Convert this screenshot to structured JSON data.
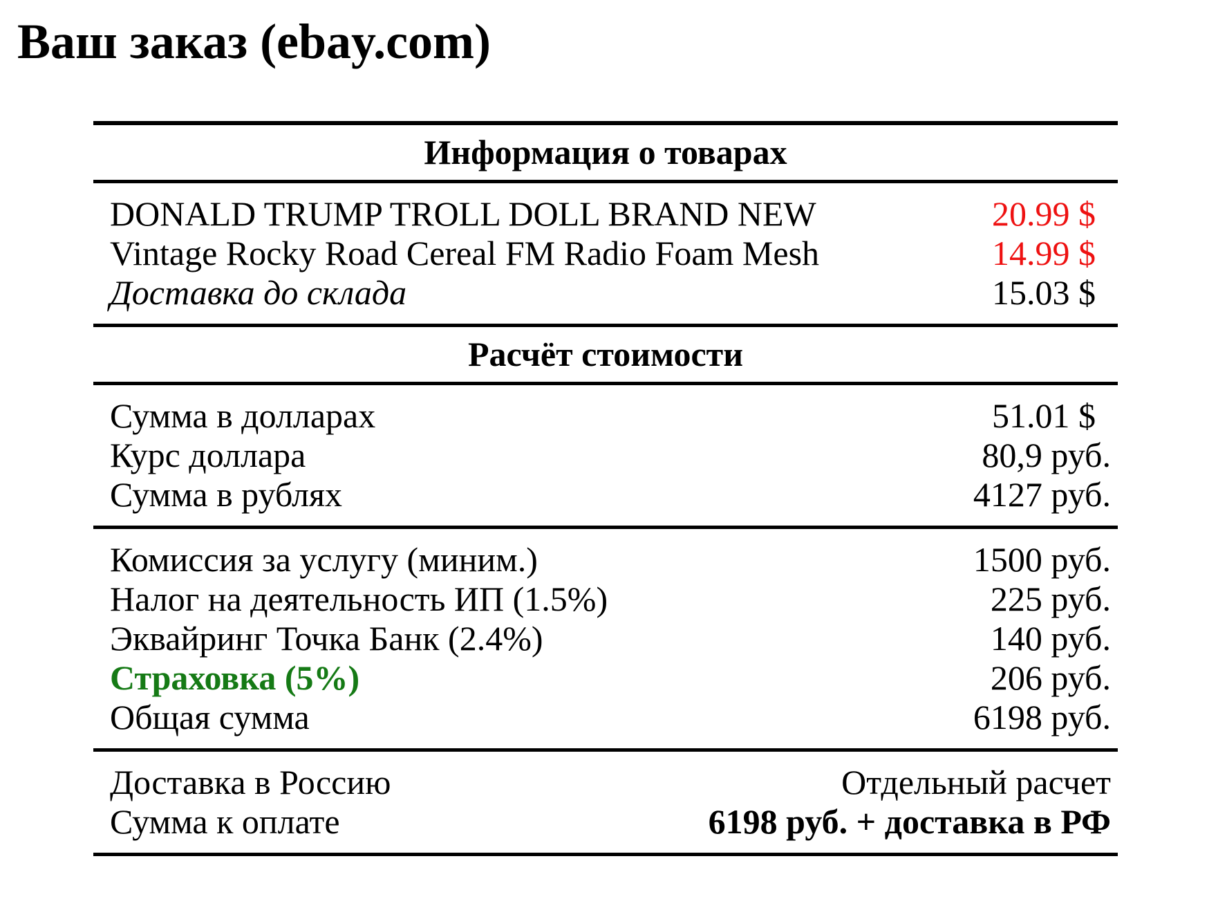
{
  "page": {
    "title": "Ваш заказ (ebay.com)"
  },
  "colors": {
    "price_red": "#ee1111",
    "insurance_green": "#157a15",
    "text": "#000000",
    "rule": "#000000",
    "background": "#ffffff"
  },
  "table": {
    "sections": [
      {
        "header": "Информация о товарах",
        "rows": [
          {
            "label": "DONALD TRUMP TROLL DOLL BRAND NEW",
            "value": "20.99 $",
            "value_color": "red"
          },
          {
            "label": "Vintage Rocky Road Cereal FM Radio Foam Mesh",
            "value": "14.99 $",
            "value_color": "red"
          },
          {
            "label": "Доставка до склада",
            "value": "15.03 $",
            "label_style": "italic"
          }
        ]
      },
      {
        "header": "Расчёт стоимости",
        "rows": [
          {
            "label": "Сумма в долларах",
            "value": "51.01 $"
          },
          {
            "label": "Курс доллара",
            "value": "80,9 руб."
          },
          {
            "label": "Сумма в рублях",
            "value": "4127 руб."
          }
        ]
      },
      {
        "header": "",
        "rows": [
          {
            "label": "Комиссия за услугу (миним.)",
            "value": "1500 руб."
          },
          {
            "label": "Налог на деятельность ИП (1.5%)",
            "value": "225 руб."
          },
          {
            "label": "Эквайринг Точка Банк (2.4%)",
            "value": "140 руб."
          },
          {
            "label": "Страховка (5%)",
            "value": "206 руб.",
            "label_style": "bold-green"
          },
          {
            "label": "Общая сумма",
            "value": "6198 руб."
          }
        ]
      },
      {
        "header": "",
        "rows": [
          {
            "label": "Доставка в Россию",
            "value": "Отдельный расчет"
          },
          {
            "label": "Сумма к оплате",
            "value": "6198 руб. + доставка в РФ",
            "value_style": "bold"
          }
        ]
      }
    ]
  }
}
